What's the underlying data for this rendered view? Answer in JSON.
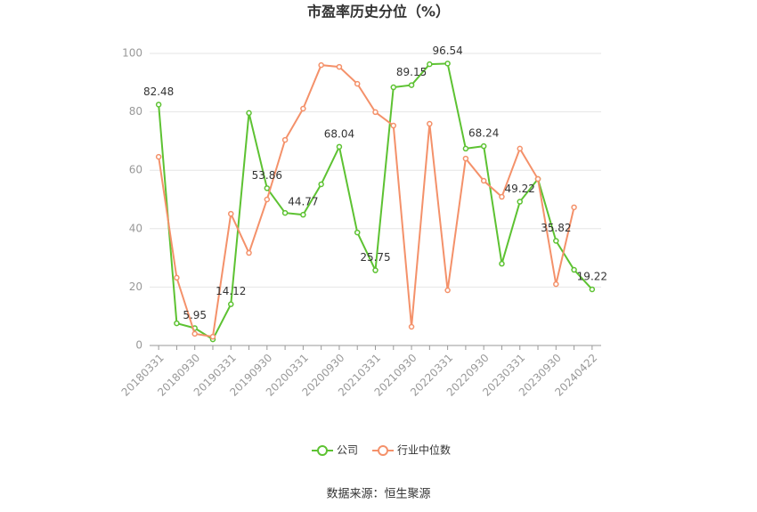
{
  "chart_data": {
    "type": "line",
    "title": "市盈率历史分位（%）",
    "categories": [
      "20180331",
      null,
      "20180930",
      null,
      "20190331",
      null,
      "20190930",
      null,
      "20200331",
      null,
      "20200930",
      null,
      "20210331",
      null,
      "20210930",
      null,
      "20220331",
      null,
      "20220930",
      null,
      "20230331",
      null,
      "20230930",
      null,
      "20240422"
    ],
    "series": [
      {
        "name": "公司",
        "color": "#5dc232",
        "values": [
          82.48,
          7.6,
          5.95,
          2.1,
          14.12,
          79.6,
          53.86,
          45.4,
          44.77,
          55.2,
          68.04,
          38.7,
          25.75,
          88.4,
          89.15,
          96.3,
          96.54,
          67.4,
          68.24,
          28.0,
          49.22,
          57.0,
          35.82,
          25.9,
          19.22
        ]
      },
      {
        "name": "行业中位数",
        "color": "#f4916a",
        "values": [
          64.6,
          23.2,
          4.0,
          3.0,
          45.1,
          31.7,
          50.0,
          70.4,
          81.1,
          96.0,
          95.4,
          89.6,
          79.9,
          75.3,
          6.4,
          75.9,
          18.9,
          64.0,
          56.4,
          50.9,
          67.4,
          57.0,
          21.0,
          47.3,
          null
        ]
      }
    ],
    "ylim": [
      0,
      100
    ],
    "yticks": [
      0,
      20,
      40,
      60,
      80,
      100
    ],
    "grid": true,
    "legend": "bottom",
    "source": "数据来源：恒生聚源"
  }
}
